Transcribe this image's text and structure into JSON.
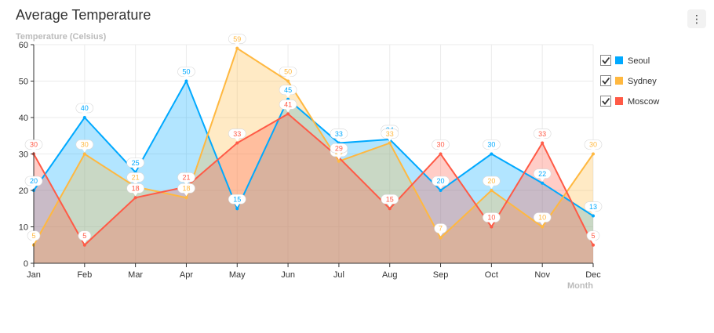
{
  "title": "Average Temperature",
  "menu_icon_glyph": "⋮",
  "chart_data": {
    "type": "area",
    "categories": [
      "Jan",
      "Feb",
      "Mar",
      "Apr",
      "May",
      "Jun",
      "Jul",
      "Aug",
      "Sep",
      "Oct",
      "Nov",
      "Dec"
    ],
    "ylabel": "Temperature (Celsius)",
    "xlabel": "Month",
    "ylim": [
      0,
      60
    ],
    "yticks": [
      0,
      10,
      20,
      30,
      40,
      50,
      60
    ],
    "grid": true,
    "legend_position": "right",
    "series": [
      {
        "name": "Seoul",
        "color": "#00a9ff",
        "checked": true,
        "values": [
          20,
          40,
          25,
          50,
          15,
          45,
          33,
          34,
          20,
          30,
          22,
          13
        ]
      },
      {
        "name": "Sydney",
        "color": "#ffb840",
        "checked": true,
        "values": [
          5,
          30,
          21,
          18,
          59,
          50,
          28,
          33,
          7,
          20,
          10,
          30
        ]
      },
      {
        "name": "Moscow",
        "color": "#ff5a46",
        "checked": true,
        "values": [
          30,
          5,
          18,
          21,
          33,
          41,
          29,
          15,
          30,
          10,
          33,
          5
        ]
      }
    ]
  }
}
